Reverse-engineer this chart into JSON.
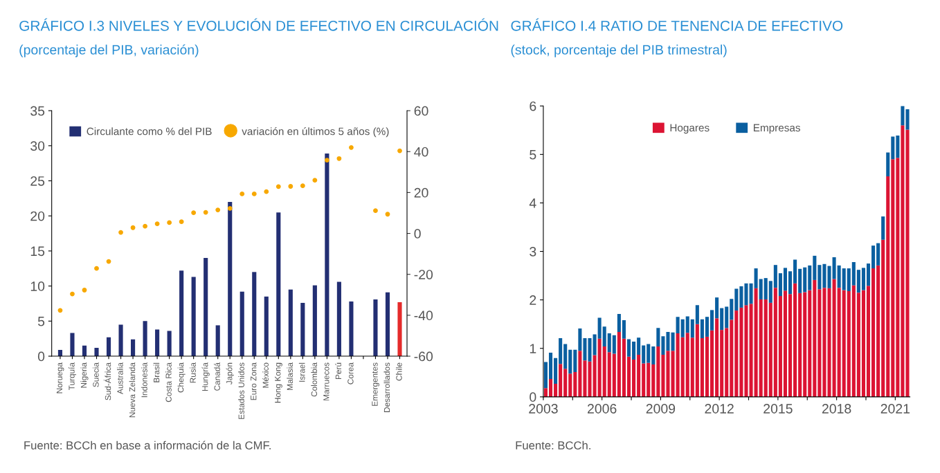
{
  "chart_data": [
    {
      "type": "bar",
      "title": "GRÁFICO I.3 NIVELES Y EVOLUCIÓN DE EFECTIVO EN CIRCULACIÓN",
      "subtitle": "(porcentaje del PIB, variación)",
      "categories": [
        "Noruega",
        "Turquía",
        "Nigeria",
        "Suecia",
        "Sud-África",
        "Australia",
        "Nueva Zelanda",
        "Indonesia",
        "Brasil",
        "Costa Rica",
        "Chequia",
        "Rusia",
        "Hungría",
        "Canadá",
        "Japón",
        "Estados Unidos",
        "Euro Zona",
        "México",
        "Hong Kong",
        "Malasia",
        "Israel",
        "Colombia",
        "Marruecos",
        "Perú",
        "Corea",
        null,
        "Emergentes",
        "Desarrollados",
        "Chile"
      ],
      "series": [
        {
          "name": "Circulante como % del PIB",
          "type": "bar",
          "color": "#232f73",
          "colors": [
            "#232f73",
            "#232f73",
            "#232f73",
            "#232f73",
            "#232f73",
            "#232f73",
            "#232f73",
            "#232f73",
            "#232f73",
            "#232f73",
            "#232f73",
            "#232f73",
            "#232f73",
            "#232f73",
            "#232f73",
            "#232f73",
            "#232f73",
            "#232f73",
            "#232f73",
            "#232f73",
            "#232f73",
            "#232f73",
            "#232f73",
            "#232f73",
            "#232f73",
            "#232f73",
            "#232f73",
            "#232f73",
            "#e52b2b"
          ],
          "values": [
            0.9,
            3.3,
            1.5,
            1.2,
            2.7,
            4.5,
            2.4,
            5.0,
            3.8,
            3.6,
            12.2,
            11.3,
            14.0,
            4.4,
            22.0,
            9.2,
            12.0,
            8.5,
            20.5,
            9.5,
            7.6,
            10.1,
            28.9,
            10.6,
            7.8,
            null,
            8.1,
            9.1,
            7.7
          ]
        },
        {
          "name": "variación en últimos 5 años (%)",
          "type": "scatter",
          "axis": "y2",
          "color": "#f7a800",
          "values": [
            -37.6,
            -29.6,
            -27.7,
            -17.1,
            -13.7,
            0.5,
            2.8,
            3.5,
            4.7,
            5.3,
            5.7,
            10.1,
            10.3,
            11.5,
            12.2,
            19.3,
            19.3,
            20.4,
            22.9,
            23.0,
            23.3,
            26.0,
            35.8,
            36.6,
            42.0,
            null,
            11.1,
            9.4,
            40.4
          ]
        }
      ],
      "ylim": [
        0,
        35
      ],
      "yticks": [
        0,
        5,
        10,
        15,
        20,
        25,
        30,
        35
      ],
      "y2lim": [
        -60,
        60
      ],
      "y2ticks": [
        -60,
        -40,
        -20,
        0,
        20,
        40,
        60
      ],
      "marker": "circle",
      "legend": "top",
      "grid": false,
      "annotations": [
        "Fuente: BCCh en base a información de la CMF."
      ]
    },
    {
      "type": "bar",
      "title": "GRÁFICO I.4 RATIO DE TENENCIA DE EFECTIVO",
      "subtitle": "(stock, porcentaje del PIB trimestral)",
      "stacked": true,
      "x": [
        2003.125,
        2003.375,
        2003.625,
        2003.875,
        2004.125,
        2004.375,
        2004.625,
        2004.875,
        2005.125,
        2005.375,
        2005.625,
        2005.875,
        2006.125,
        2006.375,
        2006.625,
        2006.875,
        2007.125,
        2007.375,
        2007.625,
        2007.875,
        2008.125,
        2008.375,
        2008.625,
        2008.875,
        2009.125,
        2009.375,
        2009.625,
        2009.875,
        2010.125,
        2010.375,
        2010.625,
        2010.875,
        2011.125,
        2011.375,
        2011.625,
        2011.875,
        2012.125,
        2012.375,
        2012.625,
        2012.875,
        2013.125,
        2013.375,
        2013.625,
        2013.875,
        2014.125,
        2014.375,
        2014.625,
        2014.875,
        2015.125,
        2015.375,
        2015.625,
        2015.875,
        2016.125,
        2016.375,
        2016.625,
        2016.875,
        2017.125,
        2017.375,
        2017.625,
        2017.875,
        2018.125,
        2018.375,
        2018.625,
        2018.875,
        2019.125,
        2019.375,
        2019.625,
        2019.875,
        2020.125,
        2020.375,
        2020.625,
        2020.875,
        2021.125,
        2021.375,
        2021.625
      ],
      "series": [
        {
          "name": "Hogares",
          "color": "#dc1433",
          "values": [
            0.18,
            0.37,
            0.27,
            0.68,
            0.58,
            0.48,
            0.51,
            0.95,
            0.75,
            0.73,
            0.86,
            1.2,
            1.04,
            0.92,
            0.89,
            1.34,
            1.2,
            0.83,
            0.77,
            0.87,
            0.69,
            0.7,
            0.67,
            1.04,
            0.87,
            0.95,
            0.95,
            1.31,
            1.23,
            1.32,
            1.22,
            1.5,
            1.21,
            1.24,
            1.37,
            1.62,
            1.38,
            1.42,
            1.59,
            1.78,
            1.84,
            1.89,
            1.92,
            2.24,
            2.01,
            2.01,
            1.94,
            2.25,
            2.08,
            2.19,
            2.12,
            2.34,
            2.14,
            2.16,
            2.2,
            2.41,
            2.22,
            2.25,
            2.24,
            2.43,
            2.25,
            2.2,
            2.18,
            2.3,
            2.15,
            2.2,
            2.29,
            2.65,
            2.71,
            3.24,
            4.55,
            4.9,
            4.93,
            5.6,
            5.51
          ]
        },
        {
          "name": "Empresas",
          "color": "#0a5fa0",
          "values": [
            0.54,
            0.54,
            0.53,
            0.53,
            0.51,
            0.49,
            0.46,
            0.46,
            0.46,
            0.48,
            0.43,
            0.43,
            0.41,
            0.39,
            0.38,
            0.37,
            0.38,
            0.36,
            0.37,
            0.35,
            0.37,
            0.39,
            0.37,
            0.38,
            0.38,
            0.39,
            0.38,
            0.34,
            0.37,
            0.34,
            0.38,
            0.39,
            0.39,
            0.41,
            0.42,
            0.43,
            0.45,
            0.44,
            0.43,
            0.45,
            0.44,
            0.45,
            0.42,
            0.41,
            0.42,
            0.44,
            0.45,
            0.47,
            0.47,
            0.47,
            0.47,
            0.49,
            0.5,
            0.51,
            0.51,
            0.5,
            0.5,
            0.49,
            0.46,
            0.45,
            0.46,
            0.45,
            0.47,
            0.48,
            0.47,
            0.46,
            0.46,
            0.47,
            0.46,
            0.48,
            0.49,
            0.47,
            0.46,
            0.4,
            0.42
          ]
        }
      ],
      "xlim": [
        2003,
        2021.75
      ],
      "xticks": [
        2003,
        {
          "value": 2004.5,
          "label": null
        },
        2006,
        {
          "value": 2007.5,
          "label": null
        },
        2009,
        {
          "value": 2010.5,
          "label": null
        },
        2012,
        {
          "value": 2013.5,
          "label": null
        },
        2015,
        {
          "value": 2016.5,
          "label": null
        },
        2018,
        {
          "value": 2019.5,
          "label": null
        },
        2021
      ],
      "ylim": [
        0,
        6
      ],
      "yticks": [
        0,
        1,
        2,
        3,
        4,
        5,
        6
      ],
      "legend": "top",
      "grid": false,
      "annotations": [
        "Fuente: BCCh."
      ]
    }
  ]
}
